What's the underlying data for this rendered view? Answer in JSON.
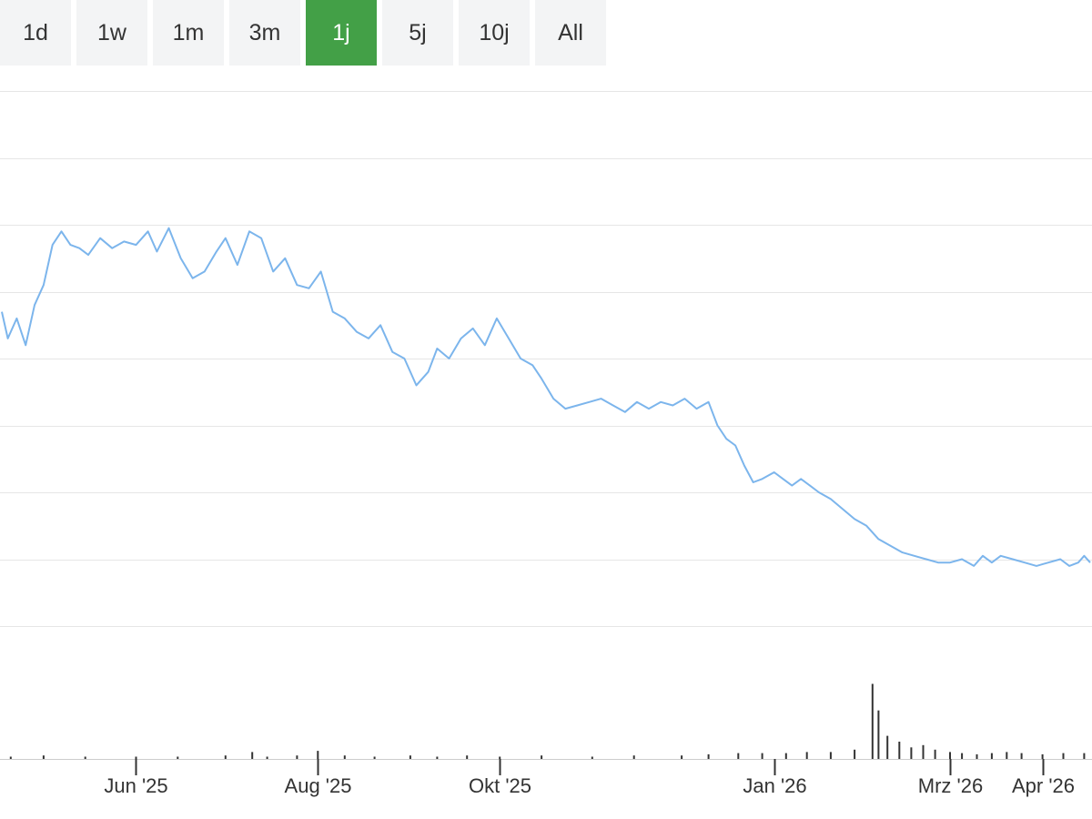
{
  "range_selector": {
    "buttons": [
      {
        "label": "1d",
        "active": false
      },
      {
        "label": "1w",
        "active": false
      },
      {
        "label": "1m",
        "active": false
      },
      {
        "label": "3m",
        "active": false
      },
      {
        "label": "1j",
        "active": true
      },
      {
        "label": "5j",
        "active": false
      },
      {
        "label": "10j",
        "active": false
      },
      {
        "label": "All",
        "active": false
      }
    ],
    "active_color": "#43a047"
  },
  "chart_data": {
    "type": "line",
    "title": "",
    "xlabel": "",
    "ylabel": "",
    "y_axis_labels_shown": false,
    "grid": true,
    "legend": "none",
    "line_color": "#7cb5ec",
    "volume_color": "#333333",
    "x_ticks": [
      "Jun '25",
      "Aug '25",
      "Okt '25",
      "Jan '26",
      "Mrz '26",
      "Apr '26"
    ],
    "x_tick_dates": [
      "2025-06-01",
      "2025-08-01",
      "2025-10-01",
      "2026-01-01",
      "2026-03-01",
      "2026-04-01"
    ],
    "date_range": [
      "2025-04-17",
      "2026-04-17"
    ],
    "ylim": [
      0,
      8
    ],
    "series": [
      {
        "kind": "price",
        "points": [
          [
            "2025-04-17",
            4.7
          ],
          [
            "2025-04-19",
            4.3
          ],
          [
            "2025-04-22",
            4.6
          ],
          [
            "2025-04-25",
            4.2
          ],
          [
            "2025-04-28",
            4.8
          ],
          [
            "2025-05-01",
            5.1
          ],
          [
            "2025-05-04",
            5.7
          ],
          [
            "2025-05-07",
            5.9
          ],
          [
            "2025-05-10",
            5.7
          ],
          [
            "2025-05-13",
            5.65
          ],
          [
            "2025-05-16",
            5.55
          ],
          [
            "2025-05-20",
            5.8
          ],
          [
            "2025-05-24",
            5.65
          ],
          [
            "2025-05-28",
            5.75
          ],
          [
            "2025-06-01",
            5.7
          ],
          [
            "2025-06-05",
            5.9
          ],
          [
            "2025-06-08",
            5.6
          ],
          [
            "2025-06-12",
            5.95
          ],
          [
            "2025-06-16",
            5.5
          ],
          [
            "2025-06-20",
            5.2
          ],
          [
            "2025-06-24",
            5.3
          ],
          [
            "2025-06-28",
            5.6
          ],
          [
            "2025-07-01",
            5.8
          ],
          [
            "2025-07-05",
            5.4
          ],
          [
            "2025-07-09",
            5.9
          ],
          [
            "2025-07-13",
            5.8
          ],
          [
            "2025-07-17",
            5.3
          ],
          [
            "2025-07-21",
            5.5
          ],
          [
            "2025-07-25",
            5.1
          ],
          [
            "2025-07-29",
            5.05
          ],
          [
            "2025-08-02",
            5.3
          ],
          [
            "2025-08-06",
            4.7
          ],
          [
            "2025-08-10",
            4.6
          ],
          [
            "2025-08-14",
            4.4
          ],
          [
            "2025-08-18",
            4.3
          ],
          [
            "2025-08-22",
            4.5
          ],
          [
            "2025-08-26",
            4.1
          ],
          [
            "2025-08-30",
            4.0
          ],
          [
            "2025-09-03",
            3.6
          ],
          [
            "2025-09-07",
            3.8
          ],
          [
            "2025-09-10",
            4.15
          ],
          [
            "2025-09-14",
            4.0
          ],
          [
            "2025-09-18",
            4.3
          ],
          [
            "2025-09-22",
            4.45
          ],
          [
            "2025-09-26",
            4.2
          ],
          [
            "2025-09-30",
            4.6
          ],
          [
            "2025-10-04",
            4.3
          ],
          [
            "2025-10-08",
            4.0
          ],
          [
            "2025-10-12",
            3.9
          ],
          [
            "2025-10-15",
            3.7
          ],
          [
            "2025-10-19",
            3.4
          ],
          [
            "2025-10-23",
            3.25
          ],
          [
            "2025-10-27",
            3.3
          ],
          [
            "2025-10-31",
            3.35
          ],
          [
            "2025-11-04",
            3.4
          ],
          [
            "2025-11-08",
            3.3
          ],
          [
            "2025-11-12",
            3.2
          ],
          [
            "2025-11-16",
            3.35
          ],
          [
            "2025-11-20",
            3.25
          ],
          [
            "2025-11-24",
            3.35
          ],
          [
            "2025-11-28",
            3.3
          ],
          [
            "2025-12-02",
            3.4
          ],
          [
            "2025-12-06",
            3.25
          ],
          [
            "2025-12-10",
            3.35
          ],
          [
            "2025-12-13",
            3.0
          ],
          [
            "2025-12-16",
            2.8
          ],
          [
            "2025-12-19",
            2.7
          ],
          [
            "2025-12-22",
            2.4
          ],
          [
            "2025-12-25",
            2.15
          ],
          [
            "2025-12-28",
            2.2
          ],
          [
            "2026-01-01",
            2.3
          ],
          [
            "2026-01-04",
            2.2
          ],
          [
            "2026-01-07",
            2.1
          ],
          [
            "2026-01-10",
            2.2
          ],
          [
            "2026-01-13",
            2.1
          ],
          [
            "2026-01-16",
            2.0
          ],
          [
            "2026-01-20",
            1.9
          ],
          [
            "2026-01-24",
            1.75
          ],
          [
            "2026-01-28",
            1.6
          ],
          [
            "2026-02-01",
            1.5
          ],
          [
            "2026-02-05",
            1.3
          ],
          [
            "2026-02-09",
            1.2
          ],
          [
            "2026-02-13",
            1.1
          ],
          [
            "2026-02-17",
            1.05
          ],
          [
            "2026-02-21",
            1.0
          ],
          [
            "2026-02-25",
            0.95
          ],
          [
            "2026-03-01",
            0.95
          ],
          [
            "2026-03-05",
            1.0
          ],
          [
            "2026-03-09",
            0.9
          ],
          [
            "2026-03-12",
            1.05
          ],
          [
            "2026-03-15",
            0.95
          ],
          [
            "2026-03-18",
            1.05
          ],
          [
            "2026-03-22",
            1.0
          ],
          [
            "2026-03-26",
            0.95
          ],
          [
            "2026-03-30",
            0.9
          ],
          [
            "2026-04-03",
            0.95
          ],
          [
            "2026-04-07",
            1.0
          ],
          [
            "2026-04-10",
            0.9
          ],
          [
            "2026-04-13",
            0.95
          ],
          [
            "2026-04-15",
            1.05
          ],
          [
            "2026-04-17",
            0.95
          ]
        ]
      },
      {
        "kind": "volume",
        "relative_scale": true,
        "points": [
          [
            "2025-04-20",
            0.02
          ],
          [
            "2025-05-01",
            0.03
          ],
          [
            "2025-05-15",
            0.02
          ],
          [
            "2025-06-01",
            0.02
          ],
          [
            "2025-06-15",
            0.02
          ],
          [
            "2025-07-01",
            0.03
          ],
          [
            "2025-07-10",
            0.06
          ],
          [
            "2025-07-15",
            0.02
          ],
          [
            "2025-07-25",
            0.03
          ],
          [
            "2025-08-01",
            0.07
          ],
          [
            "2025-08-10",
            0.03
          ],
          [
            "2025-08-20",
            0.02
          ],
          [
            "2025-09-01",
            0.03
          ],
          [
            "2025-09-10",
            0.02
          ],
          [
            "2025-09-20",
            0.03
          ],
          [
            "2025-10-01",
            0.02
          ],
          [
            "2025-10-15",
            0.03
          ],
          [
            "2025-11-01",
            0.02
          ],
          [
            "2025-11-15",
            0.03
          ],
          [
            "2025-12-01",
            0.03
          ],
          [
            "2025-12-10",
            0.04
          ],
          [
            "2025-12-20",
            0.05
          ],
          [
            "2025-12-28",
            0.05
          ],
          [
            "2026-01-05",
            0.05
          ],
          [
            "2026-01-12",
            0.06
          ],
          [
            "2026-01-20",
            0.06
          ],
          [
            "2026-01-28",
            0.08
          ],
          [
            "2026-02-03",
            0.65
          ],
          [
            "2026-02-05",
            0.42
          ],
          [
            "2026-02-08",
            0.2
          ],
          [
            "2026-02-12",
            0.15
          ],
          [
            "2026-02-16",
            0.1
          ],
          [
            "2026-02-20",
            0.12
          ],
          [
            "2026-02-24",
            0.08
          ],
          [
            "2026-03-01",
            0.06
          ],
          [
            "2026-03-05",
            0.05
          ],
          [
            "2026-03-10",
            0.04
          ],
          [
            "2026-03-15",
            0.05
          ],
          [
            "2026-03-20",
            0.06
          ],
          [
            "2026-03-25",
            0.05
          ],
          [
            "2026-04-01",
            0.04
          ],
          [
            "2026-04-08",
            0.05
          ],
          [
            "2026-04-15",
            0.05
          ]
        ]
      }
    ]
  }
}
